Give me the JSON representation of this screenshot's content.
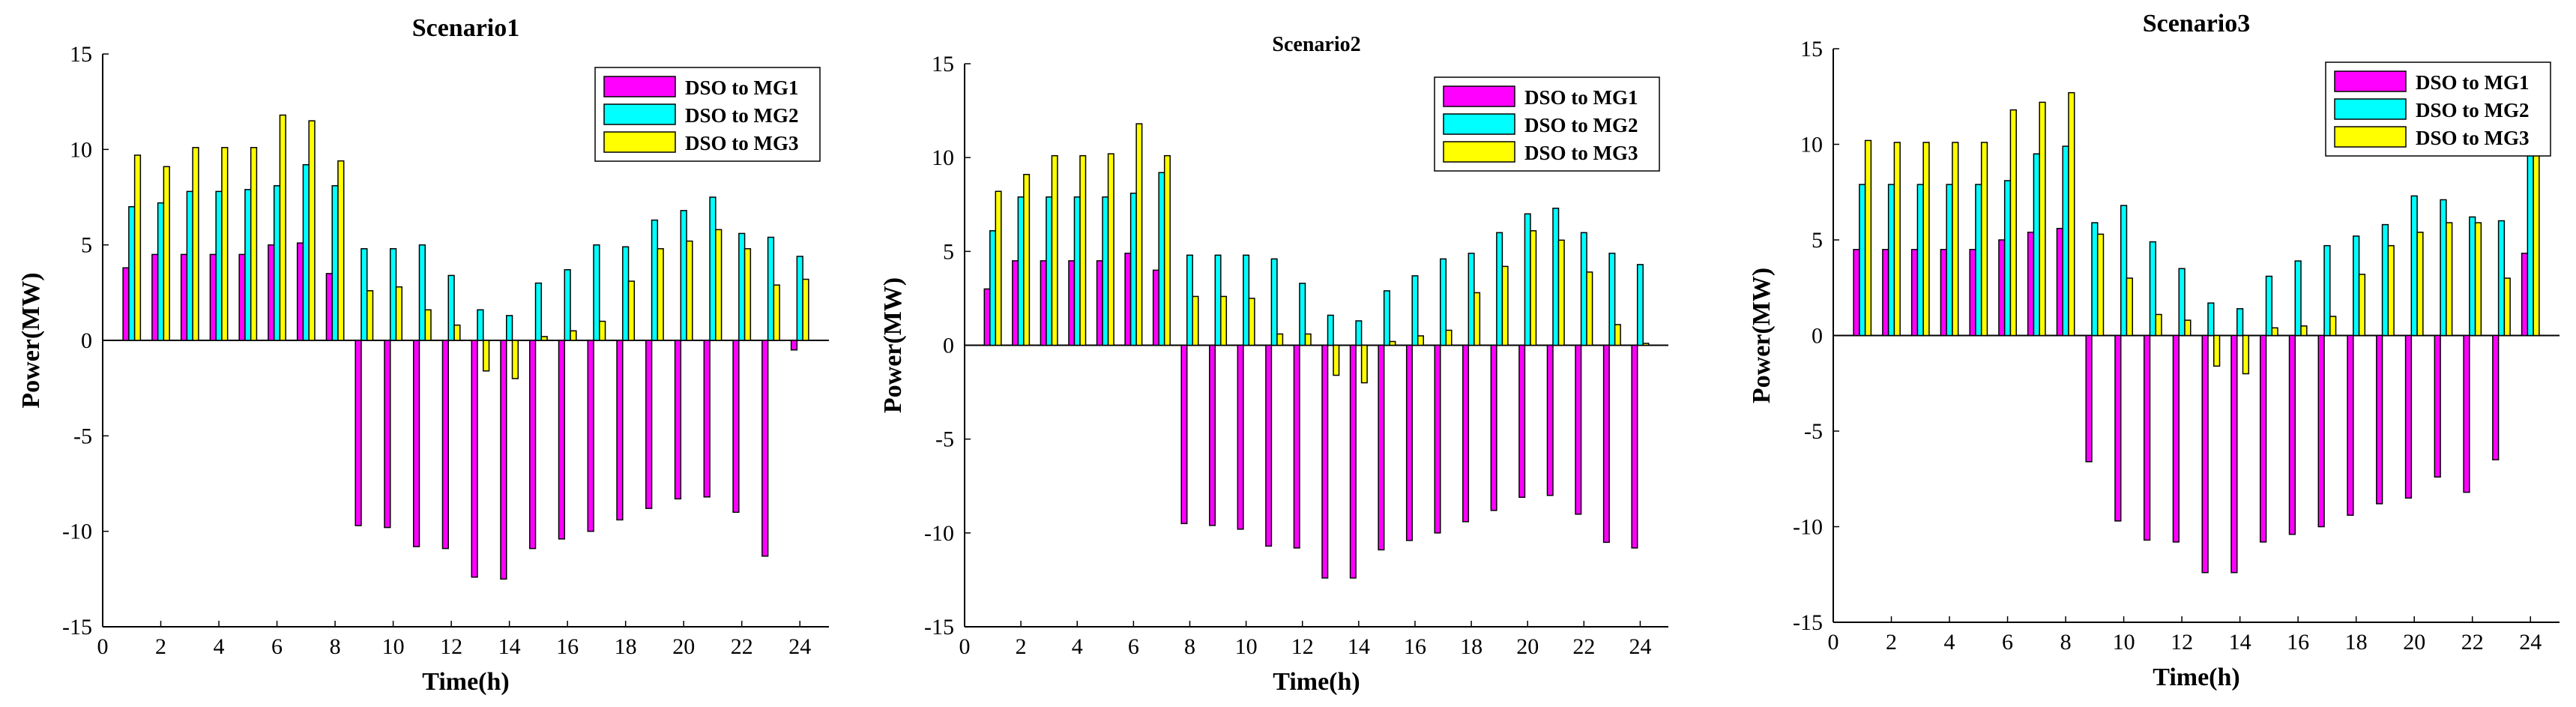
{
  "series_colors": [
    "#ff00ff",
    "#00ffff",
    "#ffff00"
  ],
  "chart_data": [
    {
      "type": "bar",
      "title": "Scenario1",
      "xlabel": "Time(h)",
      "ylabel": "Power(MW)",
      "xlim": [
        0,
        25
      ],
      "ylim": [
        -15,
        15
      ],
      "xticks": [
        "0",
        "2",
        "4",
        "6",
        "8",
        "10",
        "12",
        "14",
        "16",
        "18",
        "20",
        "22",
        "24"
      ],
      "yticks": [
        "-15",
        "-10",
        "-5",
        "0",
        "5",
        "10",
        "15"
      ],
      "legend_position": "top-right",
      "x": [
        1,
        2,
        3,
        4,
        5,
        6,
        7,
        8,
        9,
        10,
        11,
        12,
        13,
        14,
        15,
        16,
        17,
        18,
        19,
        20,
        21,
        22,
        23,
        24
      ],
      "series": [
        {
          "name": "DSO to MG1",
          "values": [
            3.8,
            4.5,
            4.5,
            4.5,
            4.5,
            5.0,
            5.1,
            3.5,
            -9.7,
            -9.8,
            -10.8,
            -10.9,
            -12.4,
            -12.5,
            -10.9,
            -10.4,
            -10.0,
            -9.4,
            -8.8,
            -8.3,
            -8.2,
            -9.0,
            -11.3,
            -0.5
          ]
        },
        {
          "name": "DSO to MG2",
          "values": [
            7.0,
            7.2,
            7.8,
            7.8,
            7.9,
            8.1,
            9.2,
            8.1,
            4.8,
            4.8,
            5.0,
            3.4,
            1.6,
            1.3,
            3.0,
            3.7,
            5.0,
            4.9,
            6.3,
            6.8,
            7.5,
            5.6,
            5.4,
            4.4
          ]
        },
        {
          "name": "DSO to MG3",
          "values": [
            9.7,
            9.1,
            10.1,
            10.1,
            10.1,
            11.8,
            11.5,
            9.4,
            2.6,
            2.8,
            1.6,
            0.8,
            -1.6,
            -2.0,
            0.2,
            0.5,
            1.0,
            3.1,
            4.8,
            5.2,
            5.8,
            4.8,
            2.9,
            3.2
          ]
        }
      ]
    },
    {
      "type": "bar",
      "title": "Scenario2",
      "xlabel": "Time(h)",
      "ylabel": "Power(MW)",
      "xlim": [
        0,
        25
      ],
      "ylim": [
        -15,
        15
      ],
      "xticks": [
        "0",
        "2",
        "4",
        "6",
        "8",
        "10",
        "12",
        "14",
        "16",
        "18",
        "20",
        "22",
        "24"
      ],
      "yticks": [
        "-15",
        "-10",
        "-5",
        "0",
        "5",
        "10",
        "15"
      ],
      "legend_position": "top-right",
      "x": [
        1,
        2,
        3,
        4,
        5,
        6,
        7,
        8,
        9,
        10,
        11,
        12,
        13,
        14,
        15,
        16,
        17,
        18,
        19,
        20,
        21,
        22,
        23,
        24
      ],
      "series": [
        {
          "name": "DSO to MG1",
          "values": [
            3.0,
            4.5,
            4.5,
            4.5,
            4.5,
            4.9,
            4.0,
            -9.5,
            -9.6,
            -9.8,
            -10.7,
            -10.8,
            -12.4,
            -12.4,
            -10.9,
            -10.4,
            -10.0,
            -9.4,
            -8.8,
            -8.1,
            -8.0,
            -9.0,
            -10.5,
            -10.8
          ]
        },
        {
          "name": "DSO to MG2",
          "values": [
            6.1,
            7.9,
            7.9,
            7.9,
            7.9,
            8.1,
            9.2,
            4.8,
            4.8,
            4.8,
            4.6,
            3.3,
            1.6,
            1.3,
            2.9,
            3.7,
            4.6,
            4.9,
            6.0,
            7.0,
            7.3,
            6.0,
            4.9,
            4.3
          ]
        },
        {
          "name": "DSO to MG3",
          "values": [
            8.2,
            9.1,
            10.1,
            10.1,
            10.2,
            11.8,
            10.1,
            2.6,
            2.6,
            2.5,
            0.6,
            0.6,
            -1.6,
            -2.0,
            0.2,
            0.5,
            0.8,
            2.8,
            4.2,
            6.1,
            5.6,
            3.9,
            1.1,
            0.1
          ]
        }
      ]
    },
    {
      "type": "bar",
      "title": "Scenario3",
      "xlabel": "Time(h)",
      "ylabel": "Power(MW)",
      "xlim": [
        0,
        25
      ],
      "ylim": [
        -15,
        15
      ],
      "xticks": [
        "0",
        "2",
        "4",
        "6",
        "8",
        "10",
        "12",
        "14",
        "16",
        "18",
        "20",
        "22",
        "24"
      ],
      "yticks": [
        "-15",
        "-10",
        "-5",
        "0",
        "5",
        "10",
        "15"
      ],
      "legend_position": "top-right",
      "x": [
        1,
        2,
        3,
        4,
        5,
        6,
        7,
        8,
        9,
        10,
        11,
        12,
        13,
        14,
        15,
        16,
        17,
        18,
        19,
        20,
        21,
        22,
        23,
        24
      ],
      "series": [
        {
          "name": "DSO to MG1",
          "values": [
            4.5,
            4.5,
            4.5,
            4.5,
            4.5,
            5.0,
            5.4,
            5.6,
            -6.6,
            -9.7,
            -10.7,
            -10.8,
            -12.4,
            -12.4,
            -10.8,
            -10.4,
            -10.0,
            -9.4,
            -8.8,
            -8.5,
            -7.4,
            -8.2,
            -6.5,
            4.3
          ]
        },
        {
          "name": "DSO to MG2",
          "values": [
            7.9,
            7.9,
            7.9,
            7.9,
            7.9,
            8.1,
            9.5,
            9.9,
            5.9,
            6.8,
            4.9,
            3.5,
            1.7,
            1.4,
            3.1,
            3.9,
            4.7,
            5.2,
            5.8,
            7.3,
            7.1,
            6.2,
            6.0,
            9.4
          ]
        },
        {
          "name": "DSO to MG3",
          "values": [
            10.2,
            10.1,
            10.1,
            10.1,
            10.1,
            11.8,
            12.2,
            12.7,
            5.3,
            3.0,
            1.1,
            0.8,
            -1.6,
            -2.0,
            0.4,
            0.5,
            1.0,
            3.2,
            4.7,
            5.4,
            5.9,
            5.9,
            3.0,
            10.0
          ]
        }
      ]
    }
  ]
}
